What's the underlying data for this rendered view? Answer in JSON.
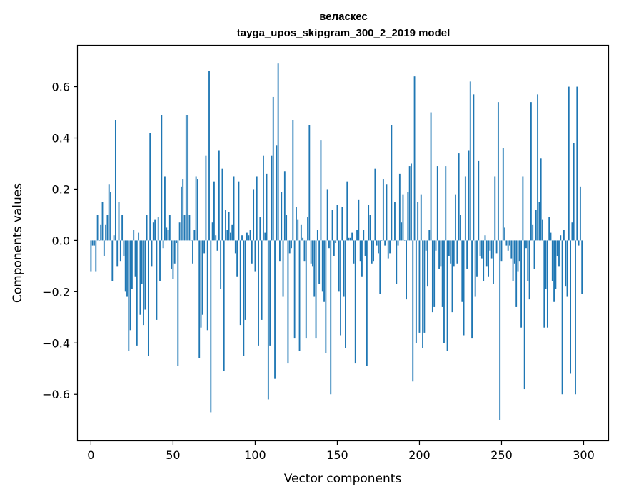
{
  "chart_data": {
    "type": "bar",
    "title": "веласкес",
    "subtitle": "tayga_upos_skipgram_300_2_2019 model",
    "xlabel": "Vector components",
    "ylabel": "Components values",
    "xlim": [
      -8,
      315
    ],
    "ylim": [
      -0.78,
      0.76
    ],
    "x_ticks": [
      0,
      50,
      100,
      150,
      200,
      250,
      300
    ],
    "x_tick_labels": [
      "0",
      "50",
      "100",
      "150",
      "200",
      "250",
      "300"
    ],
    "y_ticks": [
      -0.6,
      -0.4,
      -0.2,
      0.0,
      0.2,
      0.4,
      0.6
    ],
    "y_tick_labels": [
      "−0.6",
      "−0.4",
      "−0.2",
      "0.0",
      "0.2",
      "0.4",
      "0.6"
    ],
    "grid": false,
    "bar_color": "#1f77b4",
    "values": [
      -0.12,
      -0.02,
      -0.02,
      -0.12,
      0.1,
      0.0,
      0.06,
      0.15,
      -0.06,
      0.06,
      0.1,
      0.22,
      0.19,
      -0.16,
      0.02,
      0.47,
      -0.1,
      0.15,
      -0.08,
      0.1,
      -0.06,
      -0.2,
      -0.22,
      -0.43,
      -0.35,
      -0.19,
      0.04,
      -0.14,
      -0.41,
      0.03,
      -0.29,
      -0.17,
      -0.33,
      -0.27,
      0.1,
      -0.45,
      0.42,
      -0.1,
      0.07,
      0.08,
      -0.31,
      0.09,
      -0.16,
      0.49,
      -0.03,
      0.25,
      0.05,
      0.04,
      0.1,
      -0.11,
      -0.15,
      -0.09,
      -0.01,
      -0.49,
      0.07,
      0.21,
      0.24,
      0.1,
      0.49,
      0.49,
      0.1,
      0.0,
      -0.09,
      0.04,
      0.25,
      0.24,
      -0.46,
      -0.34,
      -0.29,
      -0.05,
      0.33,
      -0.35,
      0.66,
      -0.67,
      0.07,
      0.23,
      0.02,
      -0.04,
      0.35,
      -0.19,
      0.28,
      -0.51,
      0.12,
      0.04,
      0.11,
      0.03,
      0.06,
      0.25,
      -0.05,
      -0.14,
      0.23,
      -0.33,
      0.02,
      -0.45,
      -0.31,
      0.03,
      0.02,
      0.04,
      -0.09,
      0.2,
      -0.12,
      0.25,
      -0.41,
      0.09,
      -0.31,
      0.33,
      0.03,
      0.26,
      -0.62,
      -0.41,
      0.33,
      0.56,
      -0.54,
      0.37,
      0.69,
      -0.08,
      0.19,
      -0.22,
      0.27,
      0.1,
      -0.48,
      -0.05,
      -0.03,
      0.47,
      -0.38,
      0.13,
      0.08,
      -0.43,
      0.06,
      0.01,
      -0.08,
      -0.38,
      0.09,
      0.45,
      -0.09,
      -0.1,
      -0.22,
      -0.38,
      0.04,
      -0.17,
      0.39,
      -0.2,
      -0.24,
      -0.44,
      0.2,
      -0.03,
      -0.6,
      0.12,
      -0.06,
      -0.01,
      0.14,
      -0.2,
      -0.37,
      0.13,
      -0.22,
      -0.42,
      0.23,
      0.01,
      0.01,
      0.03,
      -0.09,
      -0.48,
      0.04,
      0.16,
      -0.08,
      -0.14,
      0.04,
      -0.06,
      -0.49,
      0.14,
      0.1,
      -0.09,
      -0.08,
      0.28,
      -0.02,
      -0.05,
      -0.21,
      0.0,
      0.24,
      -0.02,
      0.22,
      -0.07,
      -0.05,
      0.45,
      0.0,
      0.15,
      -0.17,
      -0.02,
      0.26,
      0.07,
      0.18,
      0.0,
      -0.23,
      0.19,
      0.29,
      0.3,
      -0.55,
      0.64,
      -0.4,
      0.15,
      -0.36,
      0.18,
      -0.42,
      -0.36,
      -0.04,
      -0.18,
      0.04,
      0.5,
      -0.28,
      -0.26,
      -0.04,
      0.29,
      -0.11,
      -0.1,
      -0.26,
      -0.4,
      0.29,
      -0.43,
      -0.06,
      -0.09,
      -0.28,
      -0.1,
      0.18,
      -0.09,
      0.34,
      0.1,
      -0.24,
      -0.37,
      0.25,
      -0.11,
      0.35,
      0.62,
      -0.38,
      0.57,
      -0.22,
      -0.14,
      0.31,
      -0.06,
      -0.07,
      -0.16,
      0.02,
      -0.1,
      -0.14,
      -0.04,
      -0.07,
      -0.17,
      0.25,
      -0.05,
      0.54,
      -0.7,
      -0.08,
      0.36,
      0.05,
      -0.02,
      -0.04,
      -0.02,
      -0.07,
      -0.16,
      -0.09,
      -0.26,
      -0.12,
      -0.08,
      -0.34,
      0.25,
      -0.58,
      -0.03,
      -0.16,
      -0.23,
      0.54,
      0.06,
      -0.11,
      0.12,
      0.57,
      0.15,
      0.32,
      0.08,
      -0.34,
      -0.19,
      -0.34,
      0.09,
      0.03,
      -0.16,
      -0.24,
      -0.19,
      -0.06,
      -0.1,
      0.02,
      -0.6,
      0.04,
      -0.18,
      -0.22,
      0.6,
      -0.52,
      0.07,
      0.38,
      -0.6,
      0.6,
      -0.02,
      0.21,
      -0.21
    ]
  }
}
